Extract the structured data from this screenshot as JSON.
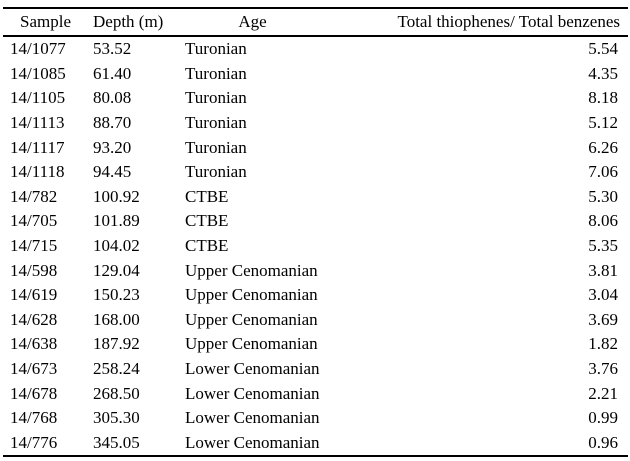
{
  "table": {
    "columns": {
      "sample": "Sample",
      "depth": "Depth (m)",
      "age": "Age",
      "ratio": "Total thiophenes/ Total benzenes"
    },
    "rows": [
      [
        "14/1077",
        "53.52",
        "Turonian",
        "5.54"
      ],
      [
        "14/1085",
        "61.40",
        "Turonian",
        "4.35"
      ],
      [
        "14/1105",
        "80.08",
        "Turonian",
        "8.18"
      ],
      [
        "14/1113",
        "88.70",
        "Turonian",
        "5.12"
      ],
      [
        "14/1117",
        "93.20",
        "Turonian",
        "6.26"
      ],
      [
        "14/1118",
        "94.45",
        "Turonian",
        "7.06"
      ],
      [
        "14/782",
        "100.92",
        "CTBE",
        "5.30"
      ],
      [
        "14/705",
        "101.89",
        "CTBE",
        "8.06"
      ],
      [
        "14/715",
        "104.02",
        "CTBE",
        "5.35"
      ],
      [
        "14/598",
        "129.04",
        "Upper Cenomanian",
        "3.81"
      ],
      [
        "14/619",
        "150.23",
        "Upper Cenomanian",
        "3.04"
      ],
      [
        "14/628",
        "168.00",
        "Upper Cenomanian",
        "3.69"
      ],
      [
        "14/638",
        "187.92",
        "Upper Cenomanian",
        "1.82"
      ],
      [
        "14/673",
        "258.24",
        "Lower Cenomanian",
        "3.76"
      ],
      [
        "14/678",
        "268.50",
        "Lower Cenomanian",
        "2.21"
      ],
      [
        "14/768",
        "305.30",
        "Lower Cenomanian",
        "0.99"
      ],
      [
        "14/776",
        "345.05",
        "Lower Cenomanian",
        "0.96"
      ]
    ],
    "rule_color": "#000000",
    "background": "#ffffff"
  },
  "chart_data": {
    "type": "table",
    "title": "",
    "columns": [
      "Sample",
      "Depth (m)",
      "Age",
      "Total thiophenes/ Total benzenes"
    ],
    "rows": [
      [
        "14/1077",
        53.52,
        "Turonian",
        5.54
      ],
      [
        "14/1085",
        61.4,
        "Turonian",
        4.35
      ],
      [
        "14/1105",
        80.08,
        "Turonian",
        8.18
      ],
      [
        "14/1113",
        88.7,
        "Turonian",
        5.12
      ],
      [
        "14/1117",
        93.2,
        "Turonian",
        6.26
      ],
      [
        "14/1118",
        94.45,
        "Turonian",
        7.06
      ],
      [
        "14/782",
        100.92,
        "CTBE",
        5.3
      ],
      [
        "14/705",
        101.89,
        "CTBE",
        8.06
      ],
      [
        "14/715",
        104.02,
        "CTBE",
        5.35
      ],
      [
        "14/598",
        129.04,
        "Upper Cenomanian",
        3.81
      ],
      [
        "14/619",
        150.23,
        "Upper Cenomanian",
        3.04
      ],
      [
        "14/628",
        168.0,
        "Upper Cenomanian",
        3.69
      ],
      [
        "14/638",
        187.92,
        "Upper Cenomanian",
        1.82
      ],
      [
        "14/673",
        258.24,
        "Lower Cenomanian",
        3.76
      ],
      [
        "14/678",
        268.5,
        "Lower Cenomanian",
        2.21
      ],
      [
        "14/768",
        305.3,
        "Lower Cenomanian",
        0.99
      ],
      [
        "14/776",
        345.05,
        "Lower Cenomanian",
        0.96
      ]
    ]
  }
}
